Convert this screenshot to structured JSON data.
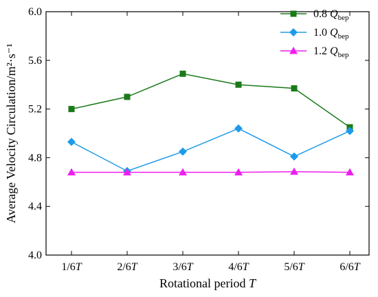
{
  "chart_data": {
    "type": "line",
    "title": "",
    "xlabel": "Rotational period T",
    "ylabel": "Average Velocity Circulation/m²·s⁻¹",
    "categories": [
      "1/6T",
      "2/6T",
      "3/6T",
      "4/6T",
      "5/6T",
      "6/6T"
    ],
    "ylim": [
      4.0,
      6.0
    ],
    "yticks": [
      4.0,
      4.4,
      4.8,
      5.2,
      5.6,
      6.0
    ],
    "grid": false,
    "legend_position": "top-right",
    "series": [
      {
        "name": "0.8 Q_bep",
        "label_base": "0.8 ",
        "label_q": "Q",
        "label_sub": "bep",
        "color": "#1a7a1a",
        "marker": "square",
        "values": [
          5.2,
          5.3,
          5.49,
          5.4,
          5.37,
          5.05
        ]
      },
      {
        "name": "1.0 Q_bep",
        "label_base": "1.0 ",
        "label_q": "Q",
        "label_sub": "bep",
        "color": "#1e9be8",
        "marker": "diamond",
        "values": [
          4.93,
          4.69,
          4.85,
          5.04,
          4.81,
          5.02
        ]
      },
      {
        "name": "1.2 Q_bep",
        "label_base": "1.2 ",
        "label_q": "Q",
        "label_sub": "bep",
        "color": "#ee1fee",
        "marker": "triangle",
        "values": [
          4.68,
          4.68,
          4.68,
          4.68,
          4.685,
          4.68
        ]
      }
    ]
  }
}
